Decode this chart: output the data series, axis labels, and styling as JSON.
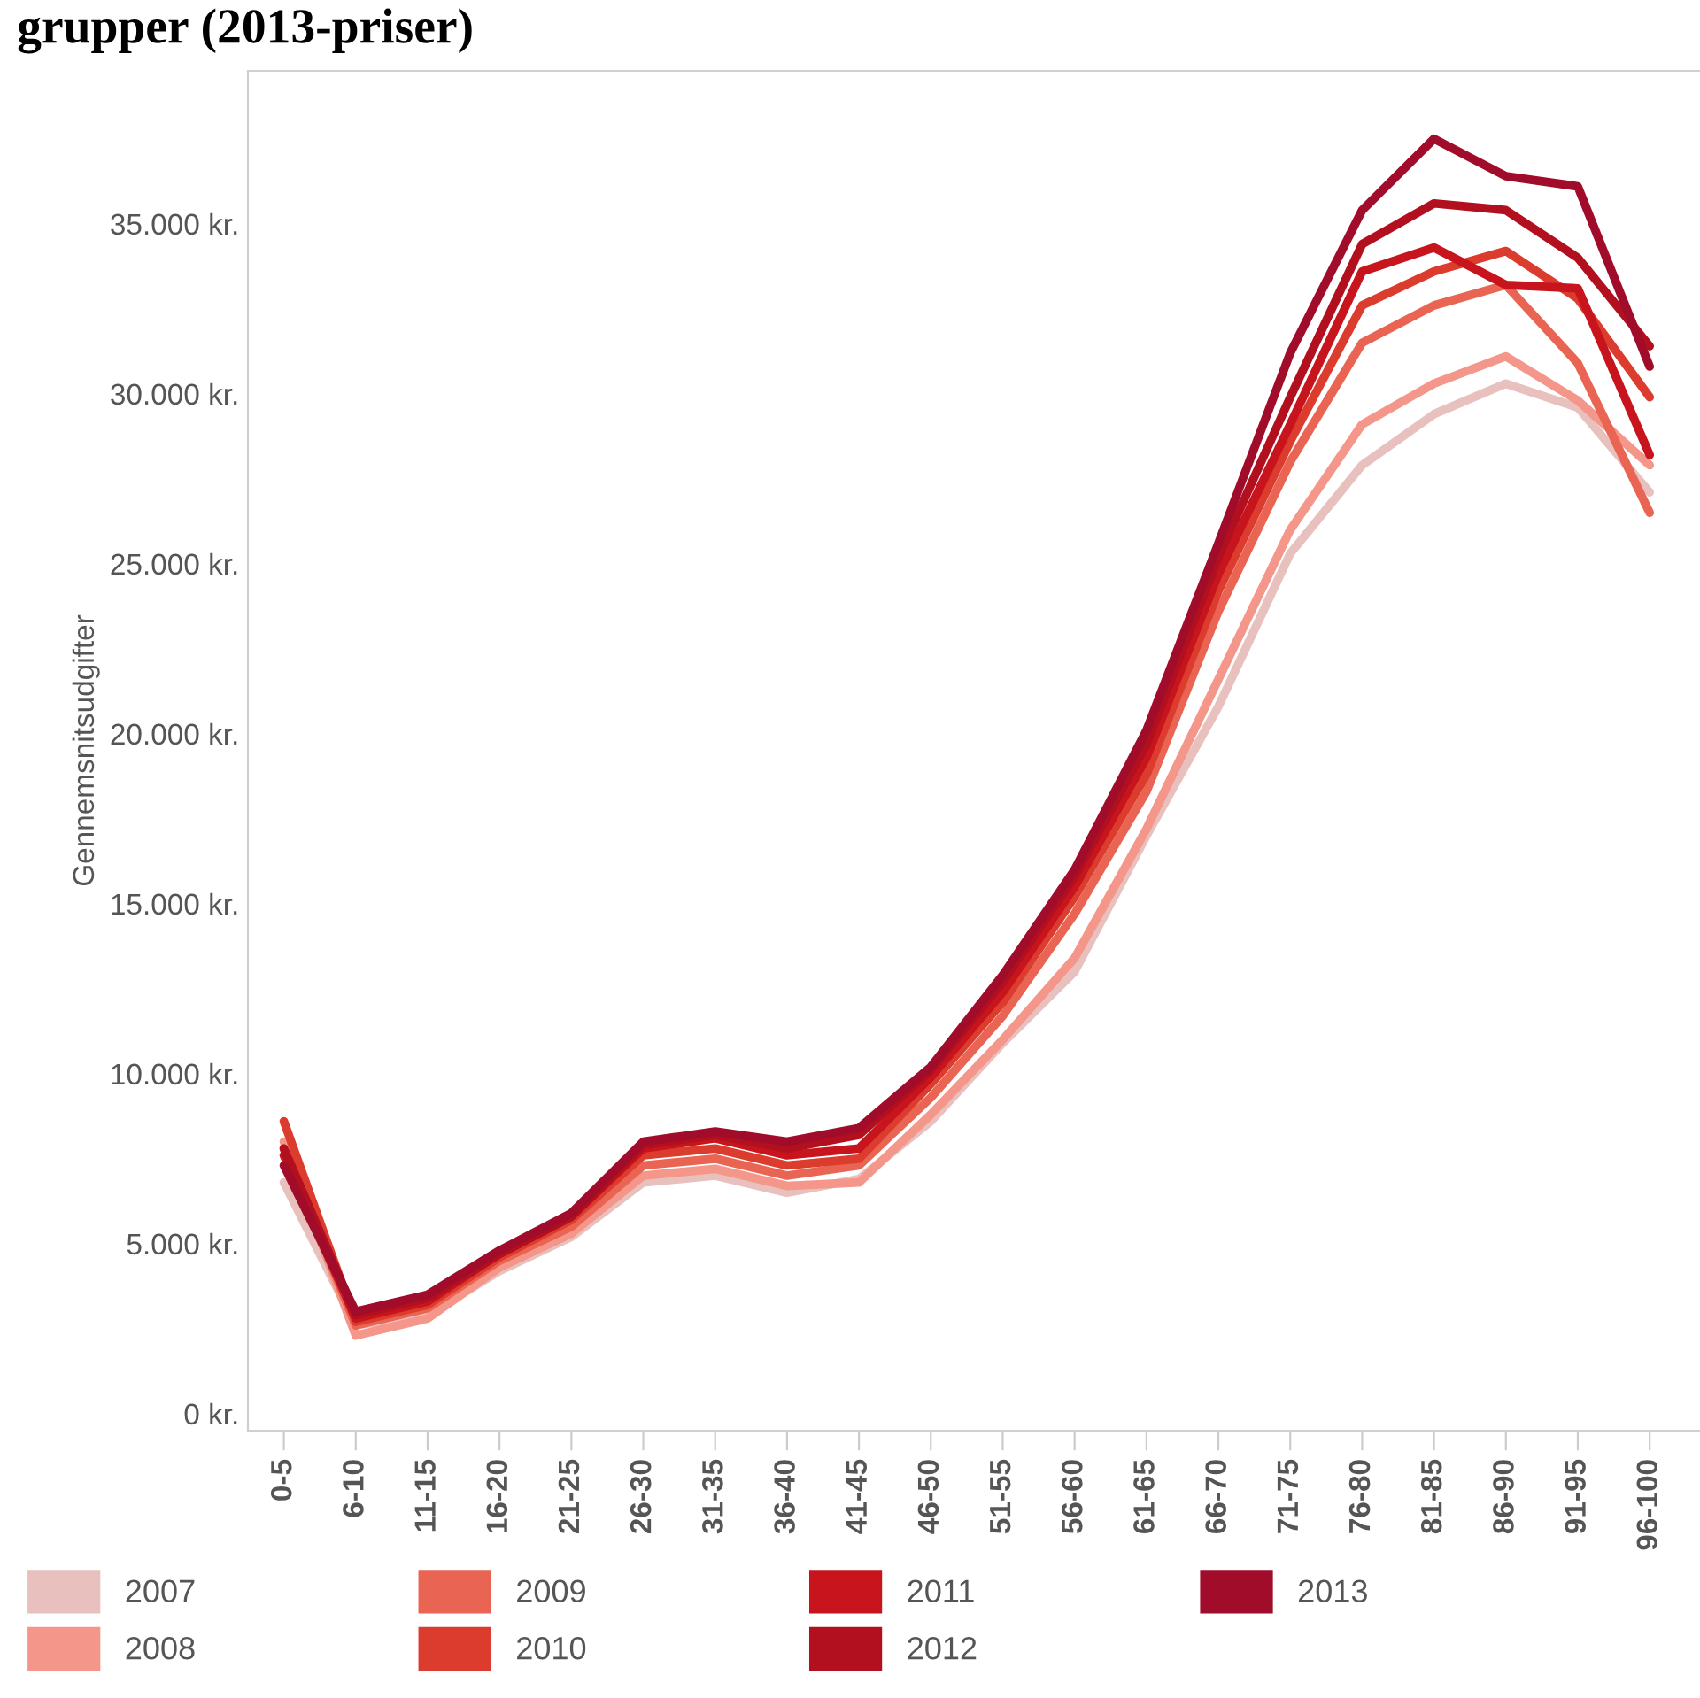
{
  "chart_data": {
    "type": "line",
    "title": "grupper (2013-priser)",
    "ylabel": "Gennemsnitsudgifter",
    "categories": [
      "0-5",
      "6-10",
      "11-15",
      "16-20",
      "21-25",
      "26-30",
      "31-35",
      "36-40",
      "41-45",
      "46-50",
      "51-55",
      "56-60",
      "61-65",
      "66-70",
      "71-75",
      "76-80",
      "81-85",
      "86-90",
      "91-95",
      "96-100"
    ],
    "series": [
      {
        "name": "2007",
        "color": "#e8c0bd",
        "values": [
          6800,
          2600,
          2900,
          4200,
          5200,
          6800,
          7000,
          6500,
          6900,
          8600,
          10900,
          13000,
          17000,
          20800,
          25300,
          27900,
          29400,
          30300,
          29600,
          27100
        ]
      },
      {
        "name": "2008",
        "color": "#f4968a",
        "values": [
          8000,
          2300,
          2800,
          4300,
          5300,
          7000,
          7200,
          6700,
          6800,
          8800,
          11000,
          13400,
          17200,
          21600,
          26000,
          29100,
          30300,
          31100,
          29800,
          27900
        ]
      },
      {
        "name": "2009",
        "color": "#e96452",
        "values": [
          7800,
          2600,
          3100,
          4500,
          5500,
          7300,
          7500,
          7000,
          7300,
          9300,
          11700,
          14700,
          18300,
          23600,
          28000,
          31500,
          32600,
          33200,
          30900,
          26500
        ]
      },
      {
        "name": "2010",
        "color": "#dc3c2e",
        "values": [
          8600,
          2700,
          3200,
          4600,
          5700,
          7600,
          7800,
          7300,
          7500,
          9700,
          12100,
          15200,
          18800,
          24200,
          28600,
          32600,
          33600,
          34200,
          32800,
          29900
        ]
      },
      {
        "name": "2011",
        "color": "#c8141c",
        "values": [
          7600,
          2800,
          3300,
          4700,
          5800,
          7800,
          8100,
          7600,
          7800,
          9900,
          12400,
          15500,
          19300,
          24700,
          29100,
          33600,
          34300,
          33200,
          33100,
          28200
        ]
      },
      {
        "name": "2012",
        "color": "#b3101f",
        "values": [
          7800,
          2900,
          3400,
          4700,
          5800,
          7900,
          8200,
          7800,
          8200,
          10100,
          12700,
          15800,
          19700,
          25200,
          29900,
          34400,
          35600,
          35400,
          34000,
          31400
        ]
      },
      {
        "name": "2013",
        "color": "#a00c2a",
        "values": [
          7300,
          3000,
          3500,
          4800,
          5900,
          8000,
          8300,
          8000,
          8400,
          10200,
          12900,
          16000,
          20100,
          25600,
          31200,
          35400,
          37500,
          36400,
          36100,
          30800
        ]
      }
    ],
    "ylim": [
      -500,
      39500
    ],
    "yticks": [
      {
        "value": 0,
        "label": "0 kr."
      },
      {
        "value": 5000,
        "label": "5.000 kr."
      },
      {
        "value": 10000,
        "label": "10.000 kr."
      },
      {
        "value": 15000,
        "label": "15.000 kr."
      },
      {
        "value": 20000,
        "label": "20.000 kr."
      },
      {
        "value": 25000,
        "label": "25.000 kr."
      },
      {
        "value": 30000,
        "label": "30.000 kr."
      },
      {
        "value": 35000,
        "label": "35.000 kr."
      }
    ],
    "grid": false,
    "legend": "bottom",
    "marker": "none",
    "line_style": "solid"
  }
}
